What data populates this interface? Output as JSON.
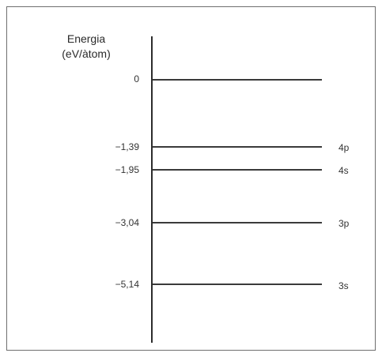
{
  "axis": {
    "title_line1": "Energia",
    "title_line2": "(eV/àtom)"
  },
  "levels": [
    {
      "energy": 0,
      "label": "0",
      "orbital": ""
    },
    {
      "energy": -1.39,
      "label": "−1,39",
      "orbital": "4p"
    },
    {
      "energy": -1.95,
      "label": "−1,95",
      "orbital": "4s"
    },
    {
      "energy": -3.04,
      "label": "−3,04",
      "orbital": "3p"
    },
    {
      "energy": -5.14,
      "label": "−5,14",
      "orbital": "3s"
    }
  ],
  "colors": {
    "line": "#3a3a3a",
    "text": "#333333",
    "frame": "#6e6e6e"
  }
}
